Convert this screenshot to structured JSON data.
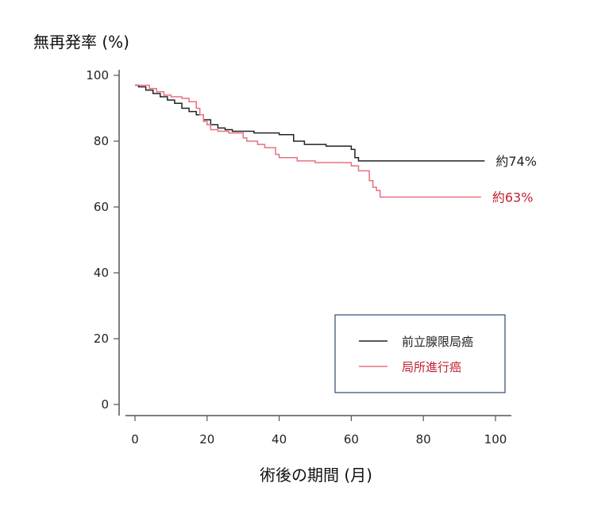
{
  "chart_data": {
    "type": "line",
    "ylabel": "無再発率 (%)",
    "xlabel": "術後の期間 (月)",
    "xlim": [
      0,
      100
    ],
    "ylim": [
      0,
      100
    ],
    "xticks": [
      0,
      20,
      40,
      60,
      80,
      100
    ],
    "yticks": [
      0,
      20,
      40,
      60,
      80,
      100
    ],
    "grid": false,
    "legend_position": "bottom-right",
    "series": [
      {
        "name": "前立腺限局癌",
        "color": "#222222",
        "end_label": "約74%",
        "end_label_color": "#222222",
        "x": [
          0,
          1,
          3,
          5,
          7,
          9,
          11,
          13,
          15,
          17,
          19,
          21,
          23,
          25,
          27,
          29,
          33,
          36,
          40,
          44,
          47,
          53,
          57,
          60,
          61,
          62,
          63,
          97
        ],
        "y": [
          97,
          96.5,
          95.5,
          94.5,
          93.5,
          92.5,
          91.5,
          90,
          89,
          88,
          86.5,
          85,
          84,
          83.5,
          83,
          83,
          82.5,
          82.5,
          82,
          80,
          79,
          78.5,
          78.5,
          77.5,
          75,
          74,
          74,
          74
        ]
      },
      {
        "name": "局所進行癌",
        "color": "#e8707f",
        "end_label": "約63%",
        "end_label_color": "#c02030",
        "x": [
          0,
          2,
          4,
          6,
          8,
          10,
          13,
          15,
          17,
          18,
          19,
          20,
          21,
          23,
          26,
          28,
          30,
          31,
          34,
          36,
          39,
          40,
          43,
          45,
          50,
          53,
          60,
          62,
          65,
          66,
          67,
          68,
          96
        ],
        "y": [
          97,
          97,
          96,
          95,
          94,
          93.5,
          93,
          92,
          90,
          88,
          86,
          85,
          83.5,
          83,
          82.5,
          82.5,
          81,
          80,
          79,
          78,
          76,
          75,
          75,
          74,
          73.5,
          73.5,
          72.5,
          71,
          68,
          66,
          65,
          63,
          63
        ]
      }
    ]
  }
}
